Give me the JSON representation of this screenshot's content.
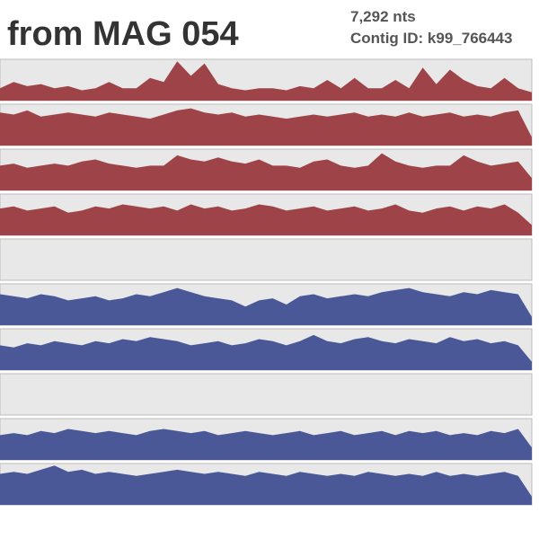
{
  "chart_data": {
    "type": "area",
    "title": "from MAG 054",
    "subtitle": "7,292 nts",
    "annotation": "Contig ID: k99_766443",
    "ylim": [
      0,
      1
    ],
    "series": [
      {
        "color": "#9e4448",
        "values": [
          0.3,
          0.45,
          0.35,
          0.4,
          0.3,
          0.35,
          0.25,
          0.3,
          0.45,
          0.3,
          0.3,
          0.55,
          0.45,
          0.95,
          0.6,
          0.9,
          0.4,
          0.3,
          0.25,
          0.3,
          0.3,
          0.25,
          0.35,
          0.3,
          0.5,
          0.3,
          0.55,
          0.3,
          0.3,
          0.5,
          0.3,
          0.8,
          0.4,
          0.75,
          0.5,
          0.35,
          0.3,
          0.55,
          0.3,
          0.2
        ]
      },
      {
        "color": "#9e4448",
        "values": [
          0.8,
          0.75,
          0.85,
          0.7,
          0.75,
          0.8,
          0.75,
          0.7,
          0.8,
          0.75,
          0.7,
          0.65,
          0.75,
          0.85,
          0.9,
          0.8,
          0.75,
          0.8,
          0.7,
          0.75,
          0.7,
          0.65,
          0.7,
          0.75,
          0.7,
          0.75,
          0.8,
          0.7,
          0.75,
          0.7,
          0.8,
          0.7,
          0.75,
          0.8,
          0.7,
          0.75,
          0.7,
          0.8,
          0.85,
          0.2
        ]
      },
      {
        "color": "#9e4448",
        "values": [
          0.6,
          0.65,
          0.55,
          0.6,
          0.65,
          0.6,
          0.7,
          0.75,
          0.65,
          0.6,
          0.55,
          0.6,
          0.6,
          0.85,
          0.75,
          0.7,
          0.8,
          0.7,
          0.65,
          0.75,
          0.6,
          0.6,
          0.55,
          0.7,
          0.75,
          0.6,
          0.55,
          0.6,
          0.9,
          0.7,
          0.6,
          0.55,
          0.6,
          0.6,
          0.85,
          0.7,
          0.6,
          0.65,
          0.7,
          0.3
        ]
      },
      {
        "color": "#9e4448",
        "values": [
          0.65,
          0.7,
          0.6,
          0.65,
          0.7,
          0.55,
          0.6,
          0.7,
          0.65,
          0.75,
          0.7,
          0.65,
          0.7,
          0.6,
          0.75,
          0.65,
          0.7,
          0.6,
          0.65,
          0.75,
          0.7,
          0.6,
          0.65,
          0.7,
          0.6,
          0.65,
          0.7,
          0.6,
          0.65,
          0.75,
          0.6,
          0.55,
          0.65,
          0.7,
          0.6,
          0.7,
          0.65,
          0.75,
          0.55,
          0.25
        ]
      },
      {
        "color": "#9e4448",
        "values": [
          0,
          0,
          0,
          0,
          0,
          0,
          0,
          0,
          0,
          0,
          0,
          0,
          0,
          0,
          0,
          0,
          0,
          0,
          0,
          0,
          0,
          0,
          0,
          0,
          0,
          0,
          0,
          0,
          0,
          0,
          0,
          0,
          0,
          0,
          0,
          0,
          0,
          0,
          0,
          0
        ]
      },
      {
        "color": "#4a5897",
        "values": [
          0.75,
          0.7,
          0.65,
          0.75,
          0.7,
          0.6,
          0.65,
          0.7,
          0.6,
          0.65,
          0.75,
          0.7,
          0.8,
          0.9,
          0.8,
          0.7,
          0.65,
          0.6,
          0.45,
          0.6,
          0.65,
          0.5,
          0.7,
          0.75,
          0.65,
          0.7,
          0.75,
          0.7,
          0.8,
          0.85,
          0.9,
          0.8,
          0.75,
          0.7,
          0.8,
          0.75,
          0.85,
          0.8,
          0.75,
          0.2
        ]
      },
      {
        "color": "#4a5897",
        "values": [
          0.6,
          0.55,
          0.65,
          0.6,
          0.7,
          0.65,
          0.6,
          0.7,
          0.65,
          0.75,
          0.7,
          0.8,
          0.75,
          0.7,
          0.6,
          0.65,
          0.7,
          0.6,
          0.65,
          0.75,
          0.7,
          0.6,
          0.7,
          0.85,
          0.7,
          0.65,
          0.75,
          0.8,
          0.7,
          0.65,
          0.75,
          0.7,
          0.65,
          0.8,
          0.7,
          0.75,
          0.65,
          0.7,
          0.6,
          0.2
        ]
      },
      {
        "color": "#4a5897",
        "values": [
          0,
          0,
          0,
          0,
          0,
          0,
          0,
          0,
          0,
          0,
          0,
          0,
          0,
          0,
          0,
          0,
          0,
          0,
          0,
          0,
          0,
          0,
          0,
          0,
          0,
          0,
          0,
          0,
          0,
          0,
          0,
          0,
          0,
          0,
          0,
          0,
          0,
          0,
          0,
          0
        ]
      },
      {
        "color": "#4a5897",
        "values": [
          0.6,
          0.65,
          0.6,
          0.7,
          0.65,
          0.75,
          0.7,
          0.65,
          0.7,
          0.65,
          0.6,
          0.7,
          0.75,
          0.7,
          0.65,
          0.7,
          0.6,
          0.65,
          0.7,
          0.65,
          0.6,
          0.65,
          0.7,
          0.6,
          0.65,
          0.7,
          0.6,
          0.65,
          0.7,
          0.6,
          0.7,
          0.65,
          0.7,
          0.6,
          0.65,
          0.6,
          0.7,
          0.65,
          0.75,
          0.3
        ]
      },
      {
        "color": "#4a5897",
        "values": [
          0.75,
          0.8,
          0.75,
          0.85,
          0.95,
          0.8,
          0.85,
          0.75,
          0.8,
          0.75,
          0.7,
          0.75,
          0.8,
          0.85,
          0.8,
          0.75,
          0.8,
          0.75,
          0.7,
          0.8,
          0.75,
          0.7,
          0.8,
          0.75,
          0.7,
          0.75,
          0.7,
          0.8,
          0.75,
          0.7,
          0.75,
          0.7,
          0.8,
          0.7,
          0.75,
          0.7,
          0.75,
          0.8,
          0.7,
          0.2
        ]
      }
    ]
  }
}
